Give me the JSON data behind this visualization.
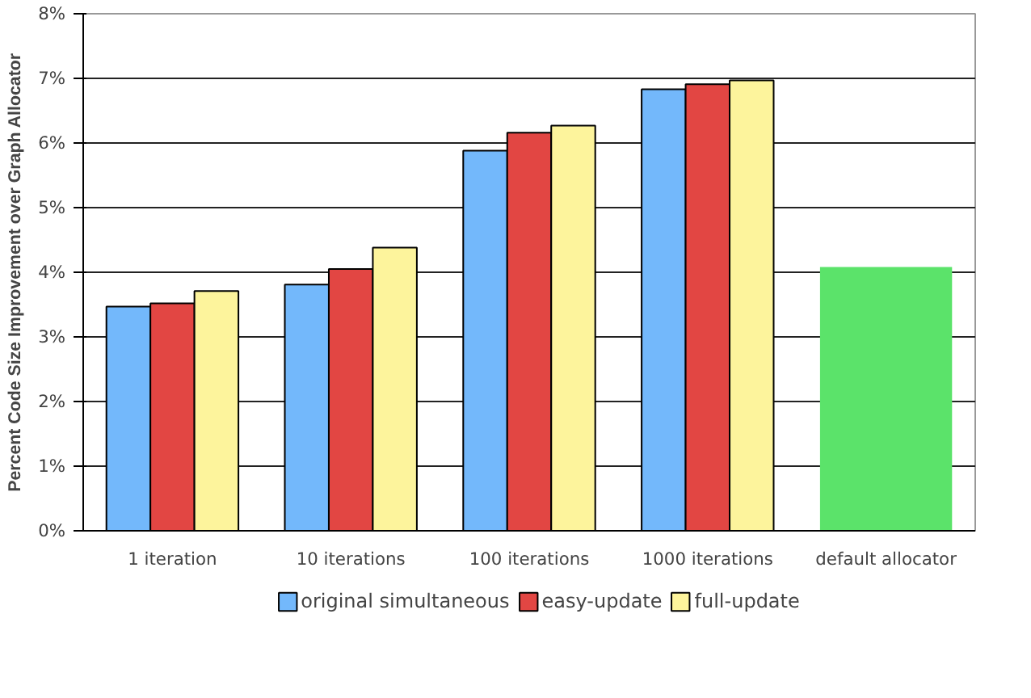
{
  "chart_data": {
    "type": "bar",
    "ylabel": "Percent Code Size Improvement over Graph Allocator",
    "categories": [
      "1 iteration",
      "10 iterations",
      "100 iterations",
      "1000 iterations",
      "default allocator"
    ],
    "series": [
      {
        "name": "original simultaneous",
        "color": "#73b8fb",
        "values": [
          3.47,
          3.81,
          5.88,
          6.83,
          null
        ]
      },
      {
        "name": "easy-update",
        "color": "#e24643",
        "values": [
          3.52,
          4.05,
          6.16,
          6.91,
          null
        ]
      },
      {
        "name": "full-update",
        "color": "#fdf49c",
        "values": [
          3.71,
          4.38,
          6.27,
          6.97,
          null
        ]
      },
      {
        "color": "#5be36a",
        "values": [
          null,
          null,
          null,
          null,
          4.08
        ]
      }
    ],
    "ylim": [
      0,
      8
    ],
    "yticks": [
      {
        "value": 0,
        "label": "0%"
      },
      {
        "value": 1,
        "label": "1%"
      },
      {
        "value": 2,
        "label": "2%"
      },
      {
        "value": 3,
        "label": "3%"
      },
      {
        "value": 4,
        "label": "4%"
      },
      {
        "value": 5,
        "label": "5%"
      },
      {
        "value": 6,
        "label": "6%"
      },
      {
        "value": 7,
        "label": "7%"
      },
      {
        "value": 8,
        "label": "8%"
      }
    ],
    "grid": "y",
    "legend": "bottom"
  }
}
